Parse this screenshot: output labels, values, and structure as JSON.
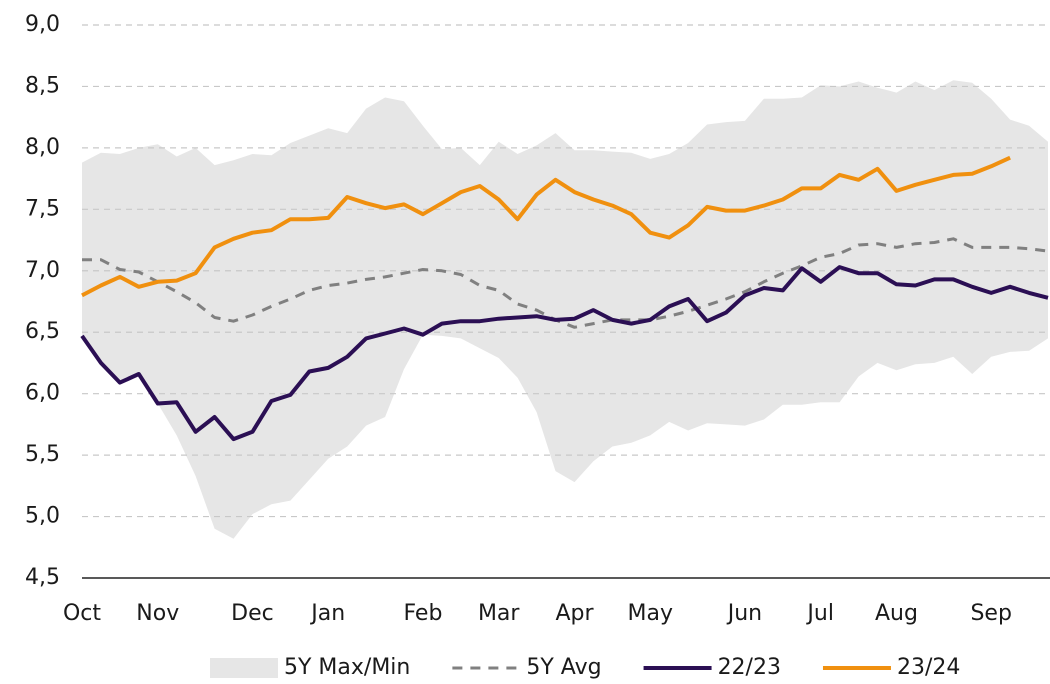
{
  "chart_data": {
    "type": "line",
    "categories": [
      "Oct",
      null,
      null,
      null,
      "Nov",
      null,
      null,
      null,
      null,
      "Dec",
      null,
      null,
      null,
      "Jan",
      null,
      null,
      null,
      null,
      "Feb",
      null,
      null,
      null,
      "Mar",
      null,
      null,
      null,
      "Apr",
      null,
      null,
      null,
      "May",
      null,
      null,
      null,
      null,
      "Jun",
      null,
      null,
      null,
      "Jul",
      null,
      null,
      null,
      "Aug",
      null,
      null,
      null,
      null,
      "Sep",
      null,
      null,
      null
    ],
    "ylim": [
      4.5,
      9.0
    ],
    "yticks": [
      {
        "value": 4.5,
        "label": "4,5"
      },
      {
        "value": 5.0,
        "label": "5,0"
      },
      {
        "value": 5.5,
        "label": "5,5"
      },
      {
        "value": 6.0,
        "label": "6,0"
      },
      {
        "value": 6.5,
        "label": "6,5"
      },
      {
        "value": 7.0,
        "label": "7,0"
      },
      {
        "value": 7.5,
        "label": "7,5"
      },
      {
        "value": 8.0,
        "label": "8,0"
      },
      {
        "value": 8.5,
        "label": "8,5"
      },
      {
        "value": 9.0,
        "label": "9,0"
      }
    ],
    "grid": true,
    "legend": "bottom",
    "series": [
      {
        "name": "5Y Max/Min",
        "kind": "band",
        "color": "#e6e6e6",
        "max": [
          7.88,
          7.96,
          7.95,
          8.0,
          8.03,
          7.93,
          8.0,
          7.86,
          7.9,
          7.95,
          7.94,
          8.04,
          8.1,
          8.16,
          8.12,
          8.32,
          8.41,
          8.38,
          8.18,
          7.99,
          8.0,
          7.86,
          8.05,
          7.95,
          8.02,
          8.12,
          7.98,
          7.98,
          7.97,
          7.96,
          7.91,
          7.95,
          8.04,
          8.19,
          8.21,
          8.22,
          8.4,
          8.4,
          8.41,
          8.51,
          8.5,
          8.54,
          8.49,
          8.45,
          8.54,
          8.47,
          8.55,
          8.53,
          8.4,
          8.23,
          8.18,
          8.05
        ],
        "min": [
          6.47,
          6.25,
          6.09,
          6.16,
          5.92,
          5.66,
          5.33,
          4.9,
          4.82,
          5.02,
          5.1,
          5.13,
          5.3,
          5.47,
          5.57,
          5.74,
          5.81,
          6.2,
          6.48,
          6.47,
          6.45,
          6.37,
          6.29,
          6.13,
          5.85,
          5.37,
          5.28,
          5.45,
          5.57,
          5.6,
          5.66,
          5.77,
          5.7,
          5.76,
          5.75,
          5.74,
          5.79,
          5.91,
          5.91,
          5.93,
          5.93,
          6.14,
          6.25,
          6.19,
          6.24,
          6.25,
          6.3,
          6.16,
          6.3,
          6.34,
          6.35,
          6.45
        ]
      },
      {
        "name": "5Y Avg",
        "kind": "dashed",
        "color": "#808080",
        "values": [
          7.09,
          7.09,
          7.01,
          6.99,
          6.91,
          6.83,
          6.74,
          6.62,
          6.59,
          6.64,
          6.71,
          6.77,
          6.84,
          6.88,
          6.9,
          6.93,
          6.95,
          6.98,
          7.01,
          7.0,
          6.97,
          6.88,
          6.84,
          6.73,
          6.68,
          6.6,
          6.54,
          6.57,
          6.6,
          6.6,
          6.6,
          6.63,
          6.67,
          6.72,
          6.77,
          6.83,
          6.91,
          6.98,
          7.04,
          7.11,
          7.14,
          7.21,
          7.22,
          7.19,
          7.22,
          7.23,
          7.26,
          7.19,
          7.19,
          7.19,
          7.18,
          7.16
        ]
      },
      {
        "name": "22/23",
        "kind": "solid",
        "color": "#2b0f54",
        "values": [
          6.47,
          6.25,
          6.09,
          6.16,
          5.92,
          5.93,
          5.69,
          5.81,
          5.63,
          5.69,
          5.94,
          5.99,
          6.18,
          6.21,
          6.3,
          6.45,
          6.49,
          6.53,
          6.48,
          6.57,
          6.59,
          6.59,
          6.61,
          6.62,
          6.63,
          6.6,
          6.61,
          6.68,
          6.6,
          6.57,
          6.6,
          6.71,
          6.77,
          6.59,
          6.66,
          6.8,
          6.86,
          6.84,
          7.02,
          6.91,
          7.03,
          6.98,
          6.98,
          6.89,
          6.88,
          6.93,
          6.93,
          6.87,
          6.82,
          6.87,
          6.82,
          6.78
        ]
      },
      {
        "name": "23/24",
        "kind": "solid",
        "color": "#f0900f",
        "values": [
          6.8,
          6.88,
          6.95,
          6.87,
          6.91,
          6.92,
          6.98,
          7.19,
          7.26,
          7.31,
          7.33,
          7.42,
          7.42,
          7.43,
          7.6,
          7.55,
          7.51,
          7.54,
          7.46,
          7.55,
          7.64,
          7.69,
          7.58,
          7.42,
          7.62,
          7.74,
          7.64,
          7.58,
          7.53,
          7.46,
          7.31,
          7.27,
          7.37,
          7.52,
          7.49,
          7.49,
          7.53,
          7.58,
          7.67,
          7.67,
          7.78,
          7.74,
          7.83,
          7.65,
          7.7,
          7.74,
          7.78,
          7.79,
          7.85,
          7.92,
          null,
          null
        ]
      }
    ]
  }
}
